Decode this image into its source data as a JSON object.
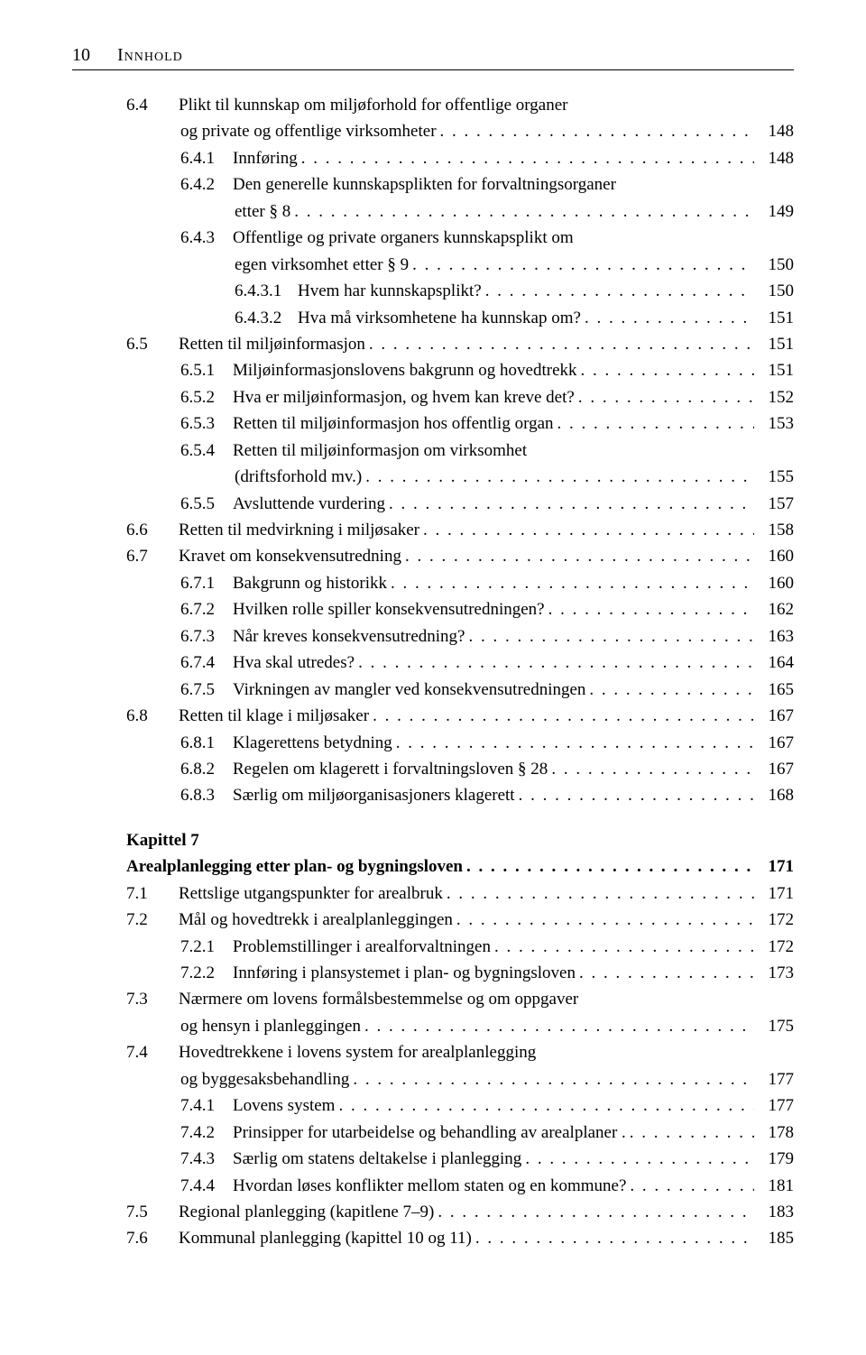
{
  "header": {
    "page_number": "10",
    "section_title": "Innhold"
  },
  "toc": {
    "entries": [
      {
        "indent": 1,
        "num": "6.4",
        "label": "Plikt til kunnskap om miljøforhold for offentlige organer",
        "continuation": "og private og offentlige virksomheter",
        "page": "148"
      },
      {
        "indent": 2,
        "num": "6.4.1",
        "label": "Innføring",
        "page": "148"
      },
      {
        "indent": 2,
        "num": "6.4.2",
        "label": "Den generelle kunnskapsplikten for forvaltningsorganer",
        "continuation": "etter § 8",
        "page": "149"
      },
      {
        "indent": 2,
        "num": "6.4.3",
        "label": "Offentlige og private organers kunnskapsplikt om",
        "continuation": "egen virksomhet etter § 9",
        "page": "150"
      },
      {
        "indent": 3,
        "num": "6.4.3.1",
        "label": "Hvem har kunnskapsplikt?",
        "page": "150"
      },
      {
        "indent": 3,
        "num": "6.4.3.2",
        "label": "Hva må virksomhetene ha kunnskap om?",
        "page": "151"
      },
      {
        "indent": 1,
        "num": "6.5",
        "label": "Retten til miljøinformasjon",
        "page": "151"
      },
      {
        "indent": 2,
        "num": "6.5.1",
        "label": "Miljøinformasjonslovens bakgrunn og hovedtrekk",
        "page": "151"
      },
      {
        "indent": 2,
        "num": "6.5.2",
        "label": "Hva er miljøinformasjon, og hvem kan kreve det?",
        "page": "152"
      },
      {
        "indent": 2,
        "num": "6.5.3",
        "label": "Retten til miljøinformasjon hos offentlig organ",
        "page": "153"
      },
      {
        "indent": 2,
        "num": "6.5.4",
        "label": "Retten til miljøinformasjon om virksomhet",
        "continuation": "(driftsforhold mv.)",
        "page": "155"
      },
      {
        "indent": 2,
        "num": "6.5.5",
        "label": "Avsluttende vurdering",
        "page": "157"
      },
      {
        "indent": 1,
        "num": "6.6",
        "label": "Retten til medvirkning i miljøsaker",
        "page": "158"
      },
      {
        "indent": 1,
        "num": "6.7",
        "label": "Kravet om konsekvensutredning",
        "page": "160"
      },
      {
        "indent": 2,
        "num": "6.7.1",
        "label": "Bakgrunn og historikk",
        "page": "160"
      },
      {
        "indent": 2,
        "num": "6.7.2",
        "label": "Hvilken rolle spiller konsekvensutredningen?",
        "page": "162"
      },
      {
        "indent": 2,
        "num": "6.7.3",
        "label": "Når kreves konsekvensutredning?",
        "page": "163"
      },
      {
        "indent": 2,
        "num": "6.7.4",
        "label": "Hva skal utredes?",
        "page": "164"
      },
      {
        "indent": 2,
        "num": "6.7.5",
        "label": "Virkningen av mangler ved konsekvensutredningen",
        "page": "165"
      },
      {
        "indent": 1,
        "num": "6.8",
        "label": "Retten til klage i miljøsaker",
        "page": "167"
      },
      {
        "indent": 2,
        "num": "6.8.1",
        "label": "Klagerettens betydning",
        "page": "167"
      },
      {
        "indent": 2,
        "num": "6.8.2",
        "label": "Regelen om klagerett i forvaltningsloven § 28",
        "page": "167"
      },
      {
        "indent": 2,
        "num": "6.8.3",
        "label": "Særlig om miljøorganisasjoners klagerett",
        "page": "168"
      }
    ],
    "chapter": {
      "heading": "Kapittel 7",
      "title": "Arealplanlegging etter plan- og bygningsloven",
      "page": "171"
    },
    "entries2": [
      {
        "indent": 1,
        "num": "7.1",
        "label": "Rettslige utgangspunkter for arealbruk",
        "page": "171"
      },
      {
        "indent": 1,
        "num": "7.2",
        "label": "Mål og hovedtrekk i arealplanleggingen",
        "page": "172"
      },
      {
        "indent": 2,
        "num": "7.2.1",
        "label": "Problemstillinger i arealforvaltningen",
        "page": "172"
      },
      {
        "indent": 2,
        "num": "7.2.2",
        "label": "Innføring i plansystemet i plan- og bygningsloven",
        "page": "173"
      },
      {
        "indent": 1,
        "num": "7.3",
        "label": "Nærmere om lovens formålsbestemmelse og om oppgaver",
        "continuation": "og hensyn i planleggingen",
        "page": "175"
      },
      {
        "indent": 1,
        "num": "7.4",
        "label": "Hovedtrekkene i lovens system for arealplanlegging",
        "continuation": "og byggesaksbehandling",
        "page": "177"
      },
      {
        "indent": 2,
        "num": "7.4.1",
        "label": "Lovens system",
        "page": "177"
      },
      {
        "indent": 2,
        "num": "7.4.2",
        "label": "Prinsipper for utarbeidelse og behandling av arealplaner .",
        "page": "178"
      },
      {
        "indent": 2,
        "num": "7.4.3",
        "label": "Særlig om statens deltakelse i planlegging",
        "page": "179"
      },
      {
        "indent": 2,
        "num": "7.4.4",
        "label": "Hvordan løses konflikter mellom staten og en kommune?",
        "page": "181"
      },
      {
        "indent": 1,
        "num": "7.5",
        "label": "Regional planlegging (kapitlene 7–9)",
        "page": "183"
      },
      {
        "indent": 1,
        "num": "7.6",
        "label": "Kommunal planlegging (kapittel 10 og 11)",
        "page": "185"
      }
    ]
  }
}
